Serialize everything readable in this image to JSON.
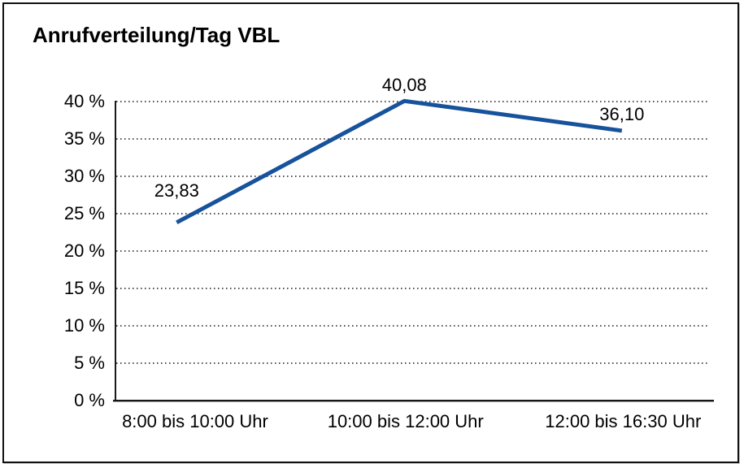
{
  "chart_data": {
    "type": "line",
    "title": "Anrufverteilung/Tag VBL",
    "categories": [
      "8:00 bis 10:00 Uhr",
      "10:00 bis 12:00 Uhr",
      "12:00 bis 16:30 Uhr"
    ],
    "values": [
      23.83,
      40.08,
      36.1
    ],
    "data_labels": [
      "23,83",
      "40,08",
      "36,10"
    ],
    "xlabel": "",
    "ylabel": "",
    "ylim": [
      0,
      40
    ],
    "ytick_step": 5,
    "ytick_labels": [
      "0 %",
      "5 %",
      "10 %",
      "15 %",
      "20 %",
      "25 %",
      "30 %",
      "35 %",
      "40 %"
    ],
    "grid": "horizontal-dotted",
    "legend": "none",
    "colors": {
      "line": "#17529c",
      "grid_dots": "#4f4f4f",
      "axis": "#1a1a1a",
      "text": "#000000",
      "background": "#ffffff",
      "border": "#111111"
    }
  }
}
